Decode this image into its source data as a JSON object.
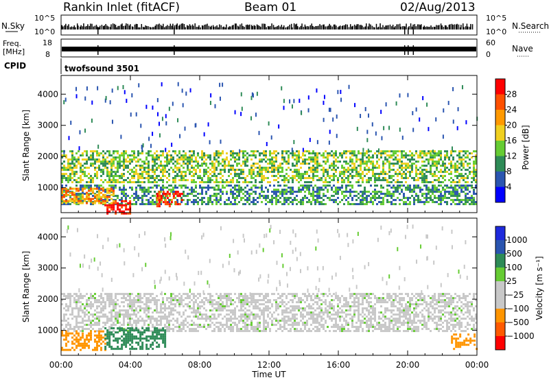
{
  "header": {
    "station": "Rankin Inlet (fitACF)",
    "beam": "Beam 01",
    "date": "02/Aug/2013"
  },
  "strips": {
    "nsky_label": "N.Sky",
    "nsky_top": "10^5",
    "nsky_bottom": "10^0",
    "nsearch_label": "N.Search",
    "nsearch_top": "10^5",
    "nsearch_bottom": "10^0",
    "freq_label_1": "Freq.",
    "freq_label_2": "[MHz]",
    "freq_top": "18",
    "freq_bottom": "8",
    "nave_label": "Nave",
    "nave_top": "60",
    "nave_bottom": "0",
    "cpid_label": "CPID",
    "cpid_value": "twofsound 3501"
  },
  "colors": {
    "power_scale": [
      "#0000ff",
      "#2a55b0",
      "#2e8b57",
      "#66cc33",
      "#f0d020",
      "#ff9900",
      "#ff5000",
      "#ff0000"
    ],
    "velocity_scale": [
      "#ff0000",
      "#ff5a00",
      "#ff9500",
      "#c8c8c8",
      "#c8c8c8",
      "#66cc33",
      "#2e8b57",
      "#2a55b0",
      "#1e2adc"
    ]
  },
  "chart_data": [
    {
      "type": "heatmap",
      "panel": "power",
      "ylabel": "Slant Range [km]",
      "x_ticks": [
        "00:00",
        "04:00",
        "08:00",
        "12:00",
        "16:00",
        "20:00",
        "00:00"
      ],
      "y_ticks": [
        "1000",
        "2000",
        "3000",
        "4000"
      ],
      "ylim": [
        200,
        4600
      ],
      "xlim_hours": [
        0,
        24
      ],
      "colorbar_label": "Power [dB]",
      "colorbar_ticks": [
        "4",
        "8",
        "12",
        "16",
        "20",
        "24",
        "28"
      ],
      "colorbar_range": [
        0,
        32
      ],
      "bands": [
        {
          "x0": 0,
          "x1": 24,
          "y0": 1200,
          "y1": 2200,
          "value": 14
        },
        {
          "x0": 0,
          "x1": 24,
          "y0": 500,
          "y1": 1100,
          "value": 10
        },
        {
          "x0": 2.5,
          "x1": 4,
          "y0": 200,
          "y1": 600,
          "value": 30
        },
        {
          "x0": 5.5,
          "x1": 7,
          "y0": 400,
          "y1": 900,
          "value": 28
        },
        {
          "x0": 0,
          "x1": 3,
          "y0": 500,
          "y1": 1000,
          "value": 22
        }
      ]
    },
    {
      "type": "heatmap",
      "panel": "velocity",
      "ylabel": "Slant Range [km]",
      "xlabel": "Time UT",
      "x_ticks": [
        "00:00",
        "04:00",
        "08:00",
        "12:00",
        "16:00",
        "20:00",
        "00:00"
      ],
      "y_ticks": [
        "1000",
        "2000",
        "3000",
        "4000"
      ],
      "ylim": [
        200,
        4600
      ],
      "xlim_hours": [
        0,
        24
      ],
      "colorbar_label": "Velocity [m s⁻¹]",
      "colorbar_ticks": [
        "1000",
        "500",
        "100",
        "25",
        "−25",
        "−100",
        "−500",
        "−1000"
      ],
      "bands": [
        {
          "x0": 0,
          "x1": 24,
          "y0": 1000,
          "y1": 2200,
          "value": 0
        },
        {
          "x0": 0,
          "x1": 2.5,
          "y0": 400,
          "y1": 1000,
          "value": -300
        },
        {
          "x0": 2.5,
          "x1": 6,
          "y0": 400,
          "y1": 1100,
          "value": 150
        },
        {
          "x0": 22.5,
          "x1": 24,
          "y0": 400,
          "y1": 900,
          "value": -300
        }
      ]
    }
  ]
}
